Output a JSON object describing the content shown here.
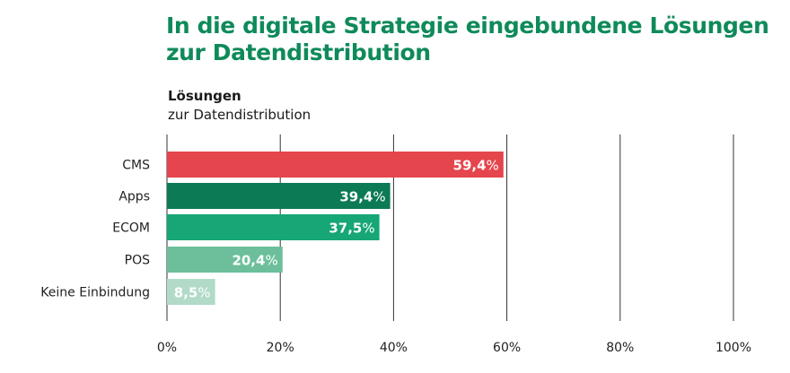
{
  "chart_data": {
    "type": "bar",
    "orientation": "horizontal",
    "title": "In die digitale Strategie eingebundene Lösungen zur Datendistribution",
    "subtitle_bold": "Lösungen",
    "subtitle": "zur Datendistribution",
    "categories": [
      "CMS",
      "Apps",
      "ECOM",
      "POS",
      "Keine Einbindung"
    ],
    "values": [
      59.4,
      39.4,
      37.5,
      20.4,
      8.5
    ],
    "value_labels": [
      "59,4",
      "39,4",
      "37,5",
      "20,4",
      "8,5"
    ],
    "value_unit": "%",
    "colors": [
      "#e5454c",
      "#0b7a55",
      "#17a676",
      "#6cbf9a",
      "#b1dbc8"
    ],
    "xlim": [
      0,
      100
    ],
    "x_ticks": [
      0,
      20,
      40,
      60,
      80,
      100
    ],
    "x_tick_labels": [
      "0%",
      "20%",
      "40%",
      "60%",
      "80%",
      "100%"
    ],
    "grid": "vertical",
    "legend": "none"
  },
  "colors": {
    "title": "#0f8a5a",
    "gridline": "#333333",
    "text": "#222222"
  }
}
